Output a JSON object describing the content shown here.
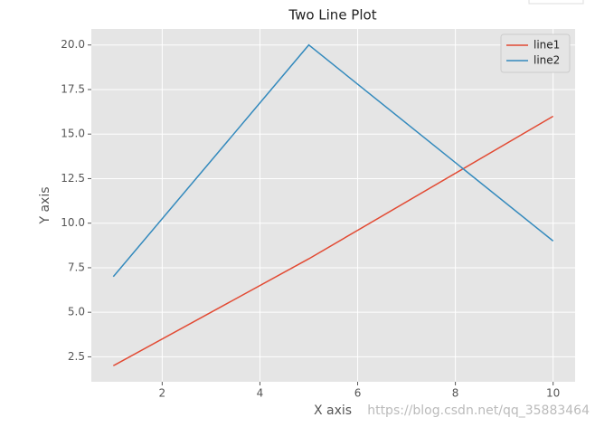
{
  "chart_data": {
    "type": "line",
    "title": "Two Line Plot",
    "x_label": "X axis",
    "y_label": "Y axis",
    "x": [
      1,
      5,
      10
    ],
    "series": [
      {
        "name": "line1",
        "color": "#E24A33",
        "values": [
          2,
          8,
          16
        ]
      },
      {
        "name": "line2",
        "color": "#348ABD",
        "values": [
          7,
          20,
          9
        ]
      }
    ],
    "xlim": [
      0.55,
      10.45
    ],
    "xticks": [
      2,
      4,
      6,
      8,
      10
    ],
    "ylim": [
      1.1,
      20.9
    ],
    "yticks": [
      {
        "value": 2.5,
        "label": "2.5"
      },
      {
        "value": 5,
        "label": "5.0"
      },
      {
        "value": 7.5,
        "label": "7.5"
      },
      {
        "value": 10,
        "label": "10.0"
      },
      {
        "value": 12.5,
        "label": "12.5"
      },
      {
        "value": 15,
        "label": "15.0"
      },
      {
        "value": 17.5,
        "label": "17.5"
      },
      {
        "value": 20,
        "label": "20.0"
      }
    ],
    "grid": true,
    "legend": "upper right",
    "watermark": "https://blog.csdn.net/qq_35883464"
  }
}
